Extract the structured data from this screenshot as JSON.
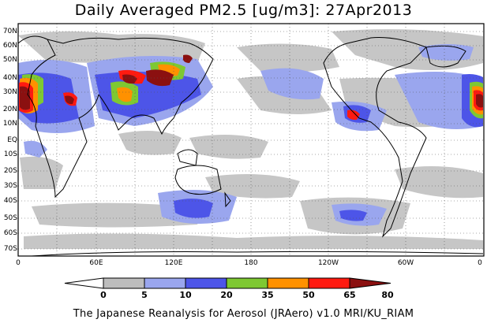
{
  "title": "Daily Averaged PM2.5 [ug/m3]: 27Apr2013",
  "lat_labels": [
    "70N",
    "60N",
    "50N",
    "40N",
    "30N",
    "20N",
    "10N",
    "EQ",
    "10S",
    "20S",
    "30S",
    "40S",
    "50S",
    "60S",
    "70S"
  ],
  "lon_labels": [
    "0",
    "60E",
    "120E",
    "180",
    "120W",
    "60W",
    "0"
  ],
  "colorbar": {
    "ticks": [
      "0",
      "5",
      "10",
      "20",
      "35",
      "50",
      "65",
      "80"
    ],
    "colors": [
      "#ffffff",
      "#bdbdbd",
      "#9aa6ee",
      "#4d55e8",
      "#7ec832",
      "#ff9100",
      "#ff1a10",
      "#8b1010"
    ]
  },
  "credit": "The Japanese Reanalysis for Aerosol (JRAero) v1.0 MRI/KU_RIAM"
}
